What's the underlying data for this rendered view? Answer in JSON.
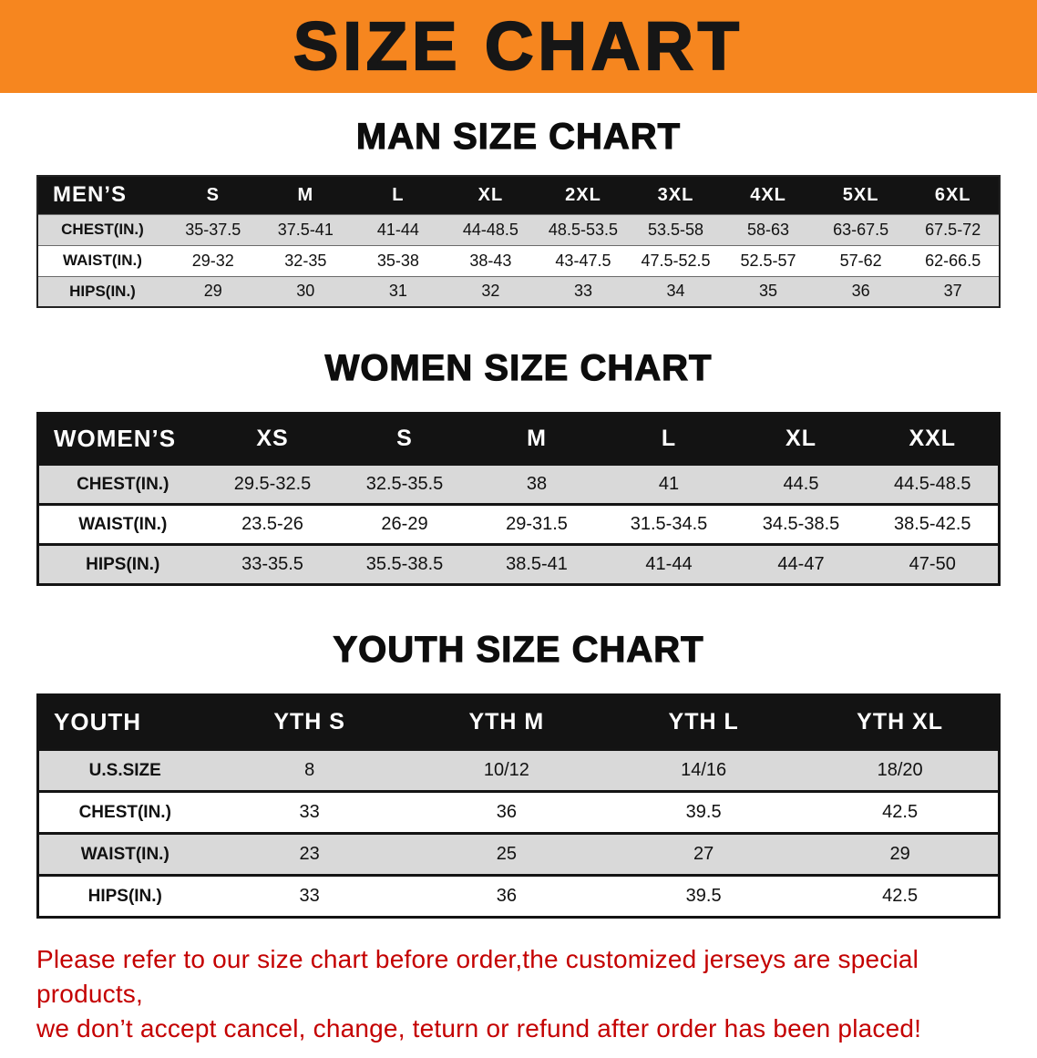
{
  "banner": {
    "title": "SIZE CHART",
    "bg_color": "#f6861f",
    "text_color": "#161616"
  },
  "sections": [
    {
      "id": "men",
      "heading": "MAN SIZE CHART",
      "table": {
        "header_label": "MEN’S",
        "columns": [
          "S",
          "M",
          "L",
          "XL",
          "2XL",
          "3XL",
          "4XL",
          "5XL",
          "6XL"
        ],
        "rows": [
          {
            "label": "CHEST(IN.)",
            "values": [
              "35-37.5",
              "37.5-41",
              "41-44",
              "44-48.5",
              "48.5-53.5",
              "53.5-58",
              "58-63",
              "63-67.5",
              "67.5-72"
            ]
          },
          {
            "label": "WAIST(IN.)",
            "values": [
              "29-32",
              "32-35",
              "35-38",
              "38-43",
              "43-47.5",
              "47.5-52.5",
              "52.5-57",
              "57-62",
              "62-66.5"
            ]
          },
          {
            "label": "HIPS(IN.)",
            "values": [
              "29",
              "30",
              "31",
              "32",
              "33",
              "34",
              "35",
              "36",
              "37"
            ]
          }
        ]
      }
    },
    {
      "id": "women",
      "heading": "WOMEN SIZE CHART",
      "table": {
        "header_label": "WOMEN’S",
        "columns": [
          "XS",
          "S",
          "M",
          "L",
          "XL",
          "XXL"
        ],
        "rows": [
          {
            "label": "CHEST(IN.)",
            "values": [
              "29.5-32.5",
              "32.5-35.5",
              "38",
              "41",
              "44.5",
              "44.5-48.5"
            ]
          },
          {
            "label": "WAIST(IN.)",
            "values": [
              "23.5-26",
              "26-29",
              "29-31.5",
              "31.5-34.5",
              "34.5-38.5",
              "38.5-42.5"
            ]
          },
          {
            "label": "HIPS(IN.)",
            "values": [
              "33-35.5",
              "35.5-38.5",
              "38.5-41",
              "41-44",
              "44-47",
              "47-50"
            ]
          }
        ]
      }
    },
    {
      "id": "youth",
      "heading": "YOUTH SIZE CHART",
      "table": {
        "header_label": "YOUTH",
        "columns": [
          "YTH S",
          "YTH M",
          "YTH L",
          "YTH XL"
        ],
        "rows": [
          {
            "label": "U.S.SIZE",
            "values": [
              "8",
              "10/12",
              "14/16",
              "18/20"
            ]
          },
          {
            "label": "CHEST(IN.)",
            "values": [
              "33",
              "36",
              "39.5",
              "42.5"
            ]
          },
          {
            "label": "WAIST(IN.)",
            "values": [
              "23",
              "25",
              "27",
              "29"
            ]
          },
          {
            "label": "HIPS(IN.)",
            "values": [
              "33",
              "36",
              "39.5",
              "42.5"
            ]
          }
        ]
      }
    }
  ],
  "footer_note": {
    "line1": "Please refer to our size chart before order,the customized jerseys are special products,",
    "line2": "we don’t accept cancel, change, teturn or refund after order has been placed!",
    "text_color": "#c40000"
  }
}
